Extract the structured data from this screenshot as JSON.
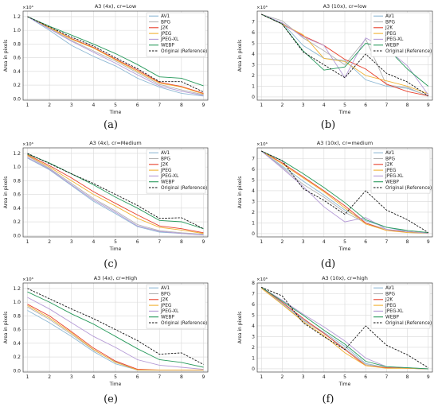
{
  "figure": {
    "captions": [
      "(a)",
      "(b)",
      "(c)",
      "(d)",
      "(e)",
      "(f)"
    ]
  },
  "colors": {
    "AV1": "#8eb8d4",
    "BPG": "#b3b3b3",
    "J2K": "#e8402c",
    "JPEG": "#f2b233",
    "JPEG-XL": "#b49ad6",
    "WEBP": "#279a5c",
    "Original (Reference)": "#111111"
  },
  "chart_data": [
    {
      "type": "line",
      "title": "A3 (4x), cr=Low",
      "xlabel": "Time",
      "ylabel": "Area in pixels",
      "multiplier": "×10⁶",
      "x": [
        1,
        2,
        3,
        4,
        5,
        6,
        7,
        8,
        9
      ],
      "xticks": [
        "1",
        "2",
        "3",
        "4",
        "5",
        "6",
        "7",
        "8",
        "9"
      ],
      "ylim": [
        -0.02,
        1.28
      ],
      "yticks": [
        "0.0",
        "0.2",
        "0.4",
        "0.6",
        "0.8",
        "1.0",
        "1.2"
      ],
      "yticks_values": [
        0,
        0.2,
        0.4,
        0.6,
        0.8,
        1.0,
        1.2
      ],
      "grid": true,
      "legend": "top-right",
      "series": [
        {
          "name": "AV1",
          "values": [
            1.2,
            1.0,
            0.78,
            0.62,
            0.48,
            0.3,
            0.17,
            0.08,
            0.04
          ]
        },
        {
          "name": "BPG",
          "values": [
            1.2,
            1.03,
            0.85,
            0.7,
            0.55,
            0.38,
            0.21,
            0.13,
            0.06
          ]
        },
        {
          "name": "J2K",
          "values": [
            1.2,
            1.04,
            0.88,
            0.75,
            0.58,
            0.42,
            0.24,
            0.18,
            0.08
          ]
        },
        {
          "name": "JPEG",
          "values": [
            1.2,
            1.04,
            0.87,
            0.74,
            0.57,
            0.4,
            0.23,
            0.17,
            0.07
          ]
        },
        {
          "name": "JPEG-XL",
          "values": [
            1.2,
            1.02,
            0.84,
            0.68,
            0.52,
            0.35,
            0.19,
            0.11,
            0.05
          ]
        },
        {
          "name": "WEBP",
          "values": [
            1.2,
            1.06,
            0.93,
            0.8,
            0.66,
            0.5,
            0.32,
            0.3,
            0.19
          ]
        },
        {
          "name": "Original (Reference)",
          "values": [
            1.2,
            1.05,
            0.9,
            0.77,
            0.6,
            0.44,
            0.25,
            0.25,
            0.1
          ]
        }
      ]
    },
    {
      "type": "line",
      "title": "A3 (10x), cr=low",
      "xlabel": "Time",
      "ylabel": "Area in pixels",
      "multiplier": "×10⁶",
      "x": [
        1,
        2,
        3,
        4,
        5,
        6,
        7,
        8,
        9
      ],
      "xticks": [
        "1",
        "2",
        "3",
        "4",
        "5",
        "6",
        "7",
        "8",
        "9"
      ],
      "ylim": [
        -0.3,
        8.0
      ],
      "yticks": [
        "0",
        "1",
        "2",
        "3",
        "4",
        "5",
        "6",
        "7"
      ],
      "yticks_values": [
        0,
        1,
        2,
        3,
        4,
        5,
        6,
        7
      ],
      "grid": true,
      "legend": "top-right",
      "series": [
        {
          "name": "AV1",
          "values": [
            7.7,
            6.9,
            4.8,
            3.6,
            3.4,
            1.6,
            1.0,
            0.8,
            0.1
          ]
        },
        {
          "name": "BPG",
          "values": [
            7.7,
            7.1,
            5.5,
            4.3,
            3.0,
            5.4,
            1.1,
            0.9,
            0.05
          ]
        },
        {
          "name": "J2K",
          "values": [
            7.7,
            6.8,
            5.7,
            4.8,
            3.5,
            2.6,
            1.2,
            0.5,
            0.1
          ]
        },
        {
          "name": "JPEG",
          "values": [
            7.7,
            6.8,
            5.8,
            3.6,
            3.3,
            2.0,
            1.5,
            1.0,
            0.3
          ]
        },
        {
          "name": "JPEG-XL",
          "values": [
            7.7,
            6.9,
            5.6,
            4.8,
            1.8,
            5.5,
            4.5,
            2.9,
            0.2
          ]
        },
        {
          "name": "WEBP",
          "values": [
            7.7,
            6.8,
            4.3,
            2.5,
            2.8,
            5.0,
            4.6,
            2.6,
            1.0
          ]
        },
        {
          "name": "Original (Reference)",
          "values": [
            7.7,
            6.8,
            4.2,
            3.0,
            1.8,
            4.0,
            2.2,
            1.4,
            0.1
          ]
        }
      ]
    },
    {
      "type": "line",
      "title": "A3 (4x), cr=Medium",
      "xlabel": "Time",
      "ylabel": "Area in pixels",
      "multiplier": "×10⁶",
      "x": [
        1,
        2,
        3,
        4,
        5,
        6,
        7,
        8,
        9
      ],
      "xticks": [
        "1",
        "2",
        "3",
        "4",
        "5",
        "6",
        "7",
        "8",
        "9"
      ],
      "ylim": [
        -0.02,
        1.28
      ],
      "yticks": [
        "0.0",
        "0.2",
        "0.4",
        "0.6",
        "0.8",
        "1.0",
        "1.2"
      ],
      "yticks_values": [
        0,
        0.2,
        0.4,
        0.6,
        0.8,
        1.0,
        1.2
      ],
      "grid": true,
      "legend": "top-right",
      "series": [
        {
          "name": "AV1",
          "values": [
            1.13,
            0.96,
            0.73,
            0.5,
            0.32,
            0.13,
            0.05,
            0.03,
            0.01
          ]
        },
        {
          "name": "BPG",
          "values": [
            1.16,
            0.98,
            0.76,
            0.54,
            0.36,
            0.16,
            0.07,
            0.04,
            0.02
          ]
        },
        {
          "name": "J2K",
          "values": [
            1.18,
            1.02,
            0.84,
            0.64,
            0.47,
            0.3,
            0.14,
            0.1,
            0.04
          ]
        },
        {
          "name": "JPEG",
          "values": [
            1.17,
            1.0,
            0.8,
            0.6,
            0.43,
            0.25,
            0.12,
            0.08,
            0.03
          ]
        },
        {
          "name": "JPEG-XL",
          "values": [
            1.14,
            0.97,
            0.74,
            0.52,
            0.34,
            0.14,
            0.06,
            0.03,
            0.01
          ]
        },
        {
          "name": "WEBP",
          "values": [
            1.19,
            1.06,
            0.9,
            0.74,
            0.56,
            0.4,
            0.22,
            0.2,
            0.1
          ]
        },
        {
          "name": "Original (Reference)",
          "values": [
            1.2,
            1.05,
            0.9,
            0.76,
            0.6,
            0.44,
            0.25,
            0.26,
            0.1
          ]
        }
      ]
    },
    {
      "type": "line",
      "title": "A3 (10x), cr=medium",
      "xlabel": "Time",
      "ylabel": "Area in pixels",
      "multiplier": "×10⁶",
      "x": [
        1,
        2,
        3,
        4,
        5,
        6,
        7,
        8,
        9
      ],
      "xticks": [
        "1",
        "2",
        "3",
        "4",
        "5",
        "6",
        "7",
        "8",
        "9"
      ],
      "ylim": [
        -0.3,
        8.0
      ],
      "yticks": [
        "0",
        "1",
        "2",
        "3",
        "4",
        "5",
        "6",
        "7"
      ],
      "yticks_values": [
        0,
        1,
        2,
        3,
        4,
        5,
        6,
        7
      ],
      "grid": true,
      "legend": "top-right",
      "series": [
        {
          "name": "AV1",
          "values": [
            7.7,
            6.3,
            4.9,
            3.6,
            2.2,
            1.2,
            0.6,
            0.2,
            0.05
          ]
        },
        {
          "name": "BPG",
          "values": [
            7.7,
            6.2,
            4.6,
            3.4,
            2.0,
            1.0,
            0.4,
            0.1,
            0.05
          ]
        },
        {
          "name": "J2K",
          "values": [
            7.7,
            6.6,
            5.3,
            4.0,
            2.6,
            1.0,
            0.3,
            0.2,
            0.05
          ]
        },
        {
          "name": "JPEG",
          "values": [
            7.7,
            6.5,
            5.2,
            3.9,
            2.4,
            0.9,
            0.3,
            0.1,
            0.05
          ]
        },
        {
          "name": "JPEG-XL",
          "values": [
            7.7,
            6.1,
            4.4,
            2.5,
            1.1,
            1.5,
            0.4,
            0.2,
            0.05
          ]
        },
        {
          "name": "WEBP",
          "values": [
            7.7,
            6.8,
            5.6,
            4.3,
            2.9,
            1.3,
            0.6,
            0.3,
            0.1
          ]
        },
        {
          "name": "Original (Reference)",
          "values": [
            7.7,
            6.8,
            4.2,
            3.1,
            1.8,
            4.0,
            2.2,
            1.3,
            0.1
          ]
        }
      ]
    },
    {
      "type": "line",
      "title": "A3 (4x), cr=High",
      "xlabel": "Time",
      "ylabel": "Area in pixels",
      "multiplier": "×10⁶",
      "x": [
        1,
        2,
        3,
        4,
        5,
        6,
        7,
        8,
        9
      ],
      "xticks": [
        "1",
        "2",
        "3",
        "4",
        "5",
        "6",
        "7",
        "8",
        "9"
      ],
      "ylim": [
        -0.02,
        1.28
      ],
      "yticks": [
        "0.0",
        "0.2",
        "0.4",
        "0.6",
        "0.8",
        "1.0",
        "1.2"
      ],
      "yticks_values": [
        0,
        0.2,
        0.4,
        0.6,
        0.8,
        1.0,
        1.2
      ],
      "grid": true,
      "legend": "top-right",
      "series": [
        {
          "name": "AV1",
          "values": [
            0.88,
            0.7,
            0.5,
            0.28,
            0.1,
            0.01,
            0.01,
            0.01,
            0.01
          ]
        },
        {
          "name": "BPG",
          "values": [
            0.93,
            0.75,
            0.53,
            0.3,
            0.13,
            0.01,
            0.01,
            0.01,
            0.01
          ]
        },
        {
          "name": "J2K",
          "values": [
            0.97,
            0.8,
            0.57,
            0.33,
            0.14,
            0.02,
            0.01,
            0.01,
            0.01
          ]
        },
        {
          "name": "JPEG",
          "values": [
            0.95,
            0.77,
            0.55,
            0.31,
            0.12,
            0.01,
            0.01,
            0.01,
            0.01
          ]
        },
        {
          "name": "JPEG-XL",
          "values": [
            1.07,
            0.9,
            0.7,
            0.5,
            0.34,
            0.16,
            0.08,
            0.05,
            0.02
          ]
        },
        {
          "name": "WEBP",
          "values": [
            1.15,
            1.0,
            0.83,
            0.68,
            0.5,
            0.32,
            0.16,
            0.12,
            0.05
          ]
        },
        {
          "name": "Original (Reference)",
          "values": [
            1.2,
            1.05,
            0.9,
            0.76,
            0.6,
            0.44,
            0.24,
            0.26,
            0.09
          ]
        }
      ]
    },
    {
      "type": "line",
      "title": "A3 (10x), cr=high",
      "xlabel": "Time",
      "ylabel": "Area in pixels",
      "multiplier": "×10⁶",
      "x": [
        1,
        2,
        3,
        4,
        5,
        6,
        7,
        8,
        9
      ],
      "xticks": [
        "1",
        "2",
        "3",
        "4",
        "5",
        "6",
        "7",
        "8",
        "9"
      ],
      "ylim": [
        -0.3,
        8.0
      ],
      "yticks": [
        "0",
        "1",
        "2",
        "3",
        "4",
        "5",
        "6",
        "7",
        "8"
      ],
      "yticks_values": [
        0,
        1,
        2,
        3,
        4,
        5,
        6,
        7,
        8
      ],
      "grid": true,
      "legend": "top-right",
      "series": [
        {
          "name": "AV1",
          "values": [
            7.6,
            6.1,
            4.6,
            3.4,
            2.1,
            0.5,
            0.1,
            0.05,
            0.0
          ]
        },
        {
          "name": "BPG",
          "values": [
            7.6,
            6.0,
            4.5,
            3.3,
            1.9,
            0.4,
            0.1,
            0.05,
            0.0
          ]
        },
        {
          "name": "J2K",
          "values": [
            7.6,
            6.2,
            4.7,
            3.3,
            1.8,
            0.3,
            0.1,
            0.05,
            0.0
          ]
        },
        {
          "name": "JPEG",
          "values": [
            7.5,
            6.0,
            4.4,
            3.1,
            1.5,
            0.3,
            0.05,
            0.05,
            0.0
          ]
        },
        {
          "name": "JPEG-XL",
          "values": [
            7.6,
            6.4,
            5.1,
            3.9,
            2.6,
            1.0,
            0.2,
            0.1,
            0.0
          ]
        },
        {
          "name": "WEBP",
          "values": [
            7.6,
            6.3,
            5.0,
            3.6,
            2.3,
            0.7,
            0.2,
            0.1,
            0.0
          ]
        },
        {
          "name": "Original (Reference)",
          "values": [
            7.6,
            6.8,
            4.3,
            3.0,
            1.8,
            4.0,
            2.2,
            1.3,
            0.1
          ]
        }
      ]
    }
  ]
}
